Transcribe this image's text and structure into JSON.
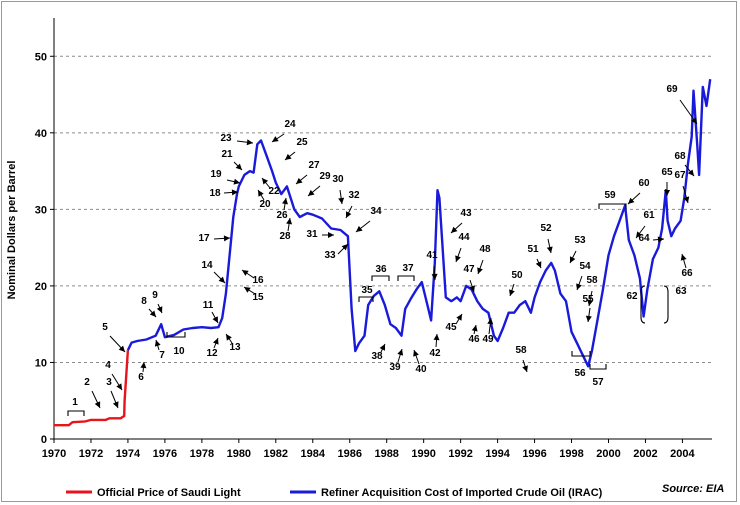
{
  "chart_data": {
    "type": "line",
    "title": "",
    "ylabel": "Nominal Dollars per Barrel",
    "xlabel": "",
    "xlim": [
      1970,
      2005.6
    ],
    "ylim": [
      0,
      55
    ],
    "xticks": [
      "1970",
      "1972",
      "1974",
      "1976",
      "1978",
      "1980",
      "1982",
      "1984",
      "1986",
      "1988",
      "1990",
      "1992",
      "1994",
      "1996",
      "1998",
      "2000",
      "2002",
      "2004"
    ],
    "yticks": [
      "0",
      "10",
      "20",
      "30",
      "40",
      "50"
    ],
    "grid": "horizontal dashed",
    "legend_position": "bottom",
    "source": "Source: EIA",
    "series": [
      {
        "name": "Official Price of Saudi Light",
        "color": "#e8141b",
        "x": [
          1970.0,
          1970.8,
          1971.0,
          1971.7,
          1972.0,
          1972.8,
          1973.0,
          1973.6,
          1973.8,
          1973.82,
          1974.0
        ],
        "y": [
          1.8,
          1.8,
          2.2,
          2.3,
          2.5,
          2.5,
          2.7,
          2.7,
          3.0,
          5.0,
          11.6
        ]
      },
      {
        "name": "Refiner Acquisition Cost of Imported Crude Oil (IRAC)",
        "color": "#1a1adb",
        "x": [
          1974.0,
          1974.2,
          1974.5,
          1975.0,
          1975.5,
          1975.8,
          1976.0,
          1976.5,
          1977.0,
          1977.5,
          1978.0,
          1978.5,
          1978.9,
          1979.1,
          1979.3,
          1979.5,
          1979.7,
          1979.9,
          1980.0,
          1980.3,
          1980.6,
          1980.8,
          1981.0,
          1981.2,
          1981.5,
          1981.8,
          1982.0,
          1982.3,
          1982.6,
          1983.0,
          1983.3,
          1983.7,
          1984.0,
          1984.5,
          1985.0,
          1985.5,
          1985.9,
          1986.1,
          1986.3,
          1986.5,
          1986.8,
          1987.0,
          1987.3,
          1987.6,
          1987.9,
          1988.2,
          1988.5,
          1988.8,
          1989.0,
          1989.3,
          1989.6,
          1989.9,
          1990.2,
          1990.4,
          1990.6,
          1990.75,
          1990.85,
          1991.0,
          1991.2,
          1991.5,
          1991.8,
          1992.0,
          1992.3,
          1992.6,
          1992.9,
          1993.2,
          1993.5,
          1993.8,
          1994.0,
          1994.3,
          1994.6,
          1994.9,
          1995.2,
          1995.5,
          1995.8,
          1996.0,
          1996.3,
          1996.6,
          1996.9,
          1997.1,
          1997.4,
          1997.7,
          1998.0,
          1998.3,
          1998.6,
          1998.9,
          1999.1,
          1999.4,
          1999.7,
          2000.0,
          2000.3,
          2000.6,
          2000.9,
          2001.1,
          2001.4,
          2001.7,
          2001.9,
          2002.1,
          2002.4,
          2002.7,
          2002.9,
          2003.1,
          2003.2,
          2003.4,
          2003.6,
          2003.9,
          2004.1,
          2004.3,
          2004.5,
          2004.6,
          2004.8,
          2004.9,
          2005.1,
          2005.3,
          2005.5
        ],
        "y": [
          11.6,
          12.6,
          12.8,
          13.0,
          13.5,
          15.0,
          13.3,
          13.6,
          14.3,
          14.5,
          14.6,
          14.5,
          14.6,
          15.8,
          19.0,
          24.0,
          29.0,
          32.0,
          33.0,
          34.5,
          35.0,
          34.8,
          38.5,
          39.0,
          37.0,
          35.0,
          33.5,
          32.0,
          33.0,
          30.0,
          29.0,
          29.5,
          29.3,
          28.8,
          27.5,
          27.3,
          26.5,
          17.0,
          11.5,
          12.5,
          13.5,
          17.5,
          18.7,
          19.3,
          17.5,
          15.0,
          14.5,
          13.5,
          17.0,
          18.3,
          19.5,
          20.5,
          17.5,
          15.5,
          23.0,
          32.5,
          31.5,
          26.0,
          18.5,
          18.0,
          18.5,
          18.0,
          20.0,
          19.5,
          18.0,
          17.0,
          16.5,
          13.5,
          12.8,
          14.5,
          16.5,
          16.5,
          17.5,
          18.0,
          16.5,
          18.5,
          20.5,
          22.0,
          23.0,
          22.0,
          19.0,
          18.0,
          14.0,
          12.5,
          11.0,
          9.5,
          11.5,
          15.5,
          19.5,
          24.0,
          26.5,
          28.5,
          30.5,
          26.0,
          24.0,
          21.0,
          16.0,
          19.5,
          23.5,
          25.0,
          27.5,
          32.5,
          28.5,
          26.5,
          27.5,
          28.5,
          31.5,
          36.0,
          39.5,
          45.5,
          38.5,
          34.5,
          46.0,
          43.5,
          47.0
        ]
      }
    ],
    "annotations": [
      "1",
      "2",
      "3",
      "4",
      "5",
      "6",
      "7",
      "8",
      "9",
      "10",
      "11",
      "12",
      "13",
      "14",
      "15",
      "16",
      "17",
      "18",
      "19",
      "20",
      "21",
      "22",
      "23",
      "24",
      "25",
      "26",
      "27",
      "28",
      "29",
      "30",
      "31",
      "32",
      "33",
      "34",
      "35",
      "36",
      "37",
      "38",
      "39",
      "40",
      "41",
      "42",
      "43",
      "44",
      "45",
      "46",
      "47",
      "48",
      "49",
      "50",
      "51",
      "52",
      "53",
      "54",
      "55",
      "56",
      "57",
      "58",
      "58",
      "59",
      "60",
      "61",
      "62",
      "63",
      "64",
      "65",
      "66",
      "67",
      "68",
      "69"
    ]
  }
}
